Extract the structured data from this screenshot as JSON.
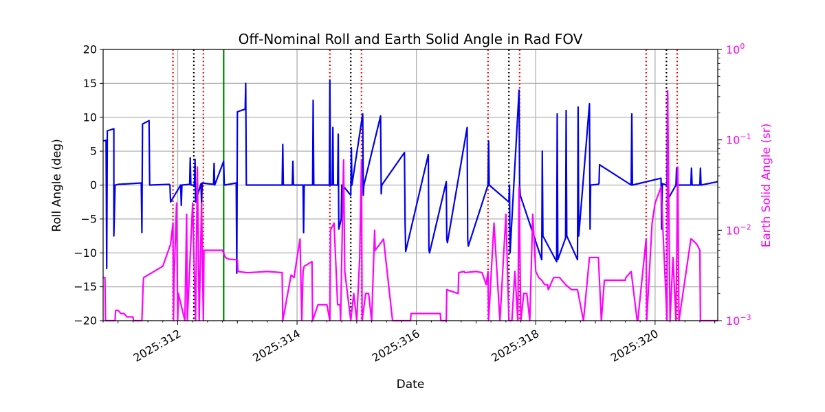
{
  "chart_data": {
    "type": "line",
    "title": "Off-Nominal Roll and Earth Solid Angle in Rad FOV",
    "xlabel": "Date",
    "ylabel": "Roll Angle (deg)",
    "ylabel_right": "Earth Solid Angle (sr)",
    "xlim": [
      310.75,
      321.05
    ],
    "ylim": [
      -20,
      20
    ],
    "ylim_right": [
      0.001,
      1
    ],
    "yscale_right": "log",
    "x_tick_labels": [
      {
        "x": 312,
        "label": "2025:312"
      },
      {
        "x": 314,
        "label": "2025:314"
      },
      {
        "x": 316,
        "label": "2025:316"
      },
      {
        "x": 318,
        "label": "2025:318"
      },
      {
        "x": 320,
        "label": "2025:320"
      }
    ],
    "y_ticks": [
      -20,
      -15,
      -10,
      -5,
      0,
      5,
      10,
      15,
      20
    ],
    "y_tick_labels": [
      "−20",
      "−15",
      "−10",
      "−5",
      "0",
      "5",
      "10",
      "15",
      "20"
    ],
    "y_right_tick_labels": [
      {
        "value": 0.001,
        "base": "10",
        "exp": "−3"
      },
      {
        "value": 0.01,
        "base": "10",
        "exp": "−2"
      },
      {
        "value": 0.1,
        "base": "10",
        "exp": "−1"
      },
      {
        "value": 1,
        "base": "10",
        "exp": "0"
      }
    ],
    "grid": true,
    "colors": {
      "roll": "#0000ee",
      "solid_angle": "#ff00ff",
      "red": "#ff0000",
      "black": "#000000",
      "green": "#008000",
      "right_axis": "#ff00ff"
    },
    "vertical_lines": [
      {
        "x": 311.92,
        "color": "red",
        "style": "dotted"
      },
      {
        "x": 312.27,
        "color": "black",
        "style": "dotted"
      },
      {
        "x": 312.43,
        "color": "red",
        "style": "dotted"
      },
      {
        "x": 312.77,
        "color": "green",
        "style": "solid"
      },
      {
        "x": 314.55,
        "color": "red",
        "style": "dotted"
      },
      {
        "x": 314.9,
        "color": "black",
        "style": "dotted"
      },
      {
        "x": 315.08,
        "color": "red",
        "style": "dotted"
      },
      {
        "x": 317.2,
        "color": "red",
        "style": "dotted"
      },
      {
        "x": 317.55,
        "color": "black",
        "style": "dotted"
      },
      {
        "x": 317.73,
        "color": "red",
        "style": "dotted"
      },
      {
        "x": 319.85,
        "color": "red",
        "style": "dotted"
      },
      {
        "x": 320.19,
        "color": "black",
        "style": "dotted"
      },
      {
        "x": 320.37,
        "color": "red",
        "style": "dotted"
      }
    ],
    "series": [
      {
        "name": "Roll Angle",
        "axis": "left",
        "color": "#0000ee",
        "x": [
          310.75,
          310.8,
          310.81,
          310.82,
          310.93,
          310.93,
          310.95,
          310.96,
          311.0,
          311.39,
          311.4,
          311.41,
          311.52,
          311.53,
          311.86,
          311.87,
          311.88,
          312.05,
          312.06,
          312.07,
          312.2,
          312.21,
          312.22,
          312.28,
          312.29,
          312.3,
          312.39,
          312.4,
          312.41,
          312.6,
          312.61,
          312.62,
          312.77,
          312.78,
          312.79,
          312.98,
          312.99,
          313.0,
          313.13,
          313.14,
          313.15,
          313.75,
          313.76,
          313.77,
          313.92,
          313.93,
          313.94,
          314.1,
          314.11,
          314.12,
          314.26,
          314.27,
          314.28,
          314.54,
          314.55,
          314.56,
          314.59,
          314.6,
          314.61,
          314.68,
          314.69,
          314.7,
          314.74,
          314.75,
          314.76,
          314.9,
          314.91,
          314.92,
          315.1,
          315.11,
          315.12,
          315.4,
          315.41,
          315.42,
          315.8,
          315.81,
          315.82,
          316.2,
          316.21,
          316.22,
          316.5,
          316.51,
          316.52,
          316.85,
          316.86,
          316.87,
          317.2,
          317.21,
          317.22,
          317.55,
          317.56,
          317.57,
          317.72,
          317.73,
          317.74,
          318.1,
          318.11,
          318.12,
          318.35,
          318.36,
          318.37,
          318.5,
          318.51,
          318.52,
          318.7,
          318.71,
          318.72,
          318.9,
          318.91,
          318.92,
          319.05,
          319.06,
          319.07,
          319.6,
          319.61,
          319.62,
          320.1,
          320.11,
          320.12,
          320.2,
          320.21,
          320.22,
          320.35,
          320.36,
          320.37,
          320.6,
          320.61,
          320.62,
          320.75,
          320.76,
          320.77,
          321.05
        ],
        "y": [
          6.5,
          6.6,
          -12.3,
          8.0,
          8.3,
          -7.5,
          0.0,
          0.0,
          0.1,
          0.3,
          -7.0,
          9.0,
          9.5,
          0.0,
          0.1,
          0.0,
          -2.5,
          0.0,
          -3.0,
          0.0,
          0.1,
          4.0,
          0.0,
          0.0,
          3.8,
          -2.5,
          0.2,
          -2.8,
          0.3,
          0.1,
          3.2,
          0.0,
          3.5,
          0.1,
          0.0,
          0.3,
          -13.0,
          10.8,
          11.2,
          15.0,
          0.0,
          0.0,
          6.0,
          0.0,
          0.0,
          3.5,
          0.0,
          0.0,
          -7.0,
          0.0,
          0.0,
          12.5,
          0.0,
          0.0,
          15.5,
          0.0,
          0.0,
          8.5,
          0.0,
          0.0,
          7.5,
          -6.5,
          -5.0,
          0.0,
          0.0,
          -1.5,
          5.5,
          0.0,
          10.5,
          -1.5,
          0.0,
          10.2,
          -1.3,
          0.0,
          4.8,
          -5.5,
          -9.8,
          4.5,
          -9.5,
          -10.0,
          0.5,
          -8.0,
          -8.5,
          8.5,
          -8.0,
          -9.0,
          0.0,
          6.5,
          0.0,
          -2.5,
          0.0,
          -10.0,
          14.0,
          0.0,
          -1.5,
          -11.0,
          5.0,
          -7.5,
          -11.3,
          10.5,
          -11.0,
          -7.8,
          11.0,
          -7.5,
          -11.0,
          11.5,
          -7.5,
          12.0,
          -6.5,
          0.0,
          0.1,
          0.3,
          3.0,
          0.0,
          10.5,
          0.0,
          1.0,
          -6.5,
          0.2,
          0.0,
          13.5,
          -2.0,
          0.0,
          2.5,
          0.0,
          0.0,
          2.5,
          0.0,
          0.0,
          2.5,
          0.0,
          0.5
        ]
      },
      {
        "name": "Earth Solid Angle",
        "axis": "right",
        "color": "#ff00ff",
        "x": [
          310.75,
          310.78,
          310.79,
          310.95,
          310.96,
          311.0,
          311.05,
          311.1,
          311.15,
          311.25,
          311.26,
          311.4,
          311.42,
          311.43,
          311.6,
          311.75,
          311.88,
          311.92,
          311.93,
          311.94,
          311.98,
          312.0,
          312.01,
          312.12,
          312.15,
          312.16,
          312.25,
          312.3,
          312.33,
          312.36,
          312.4,
          312.43,
          312.44,
          312.75,
          312.8,
          312.85,
          313.0,
          313.01,
          313.15,
          313.2,
          313.5,
          313.75,
          313.76,
          313.9,
          313.95,
          314.0,
          314.05,
          314.08,
          314.1,
          314.12,
          314.25,
          314.26,
          314.35,
          314.4,
          314.45,
          314.5,
          314.55,
          314.56,
          314.62,
          314.68,
          314.72,
          314.73,
          314.78,
          314.8,
          314.9,
          314.95,
          315.0,
          315.05,
          315.08,
          315.09,
          315.15,
          315.2,
          315.25,
          315.3,
          315.31,
          315.45,
          315.55,
          315.6,
          315.61,
          315.9,
          315.91,
          316.0,
          316.01,
          316.4,
          316.41,
          316.5,
          316.51,
          316.7,
          316.71,
          316.8,
          316.81,
          317.0,
          317.1,
          317.17,
          317.2,
          317.21,
          317.3,
          317.4,
          317.5,
          317.55,
          317.6,
          317.65,
          317.7,
          317.72,
          317.75,
          317.8,
          317.85,
          317.9,
          317.95,
          318.0,
          318.05,
          318.1,
          318.15,
          318.2,
          318.21,
          318.3,
          318.4,
          318.5,
          318.6,
          318.7,
          318.8,
          318.9,
          319.05,
          319.1,
          319.15,
          319.5,
          319.51,
          319.6,
          319.7,
          319.71,
          319.85,
          319.86,
          319.95,
          320.0,
          320.1,
          320.2,
          320.21,
          320.25,
          320.3,
          320.35,
          320.38,
          320.4,
          320.6,
          320.61,
          320.7,
          320.75,
          320.76,
          321.05
        ],
        "y": [
          0.003,
          0.003,
          0.001,
          0.001,
          0.0013,
          0.0013,
          0.0012,
          0.0012,
          0.0011,
          0.0011,
          0.001,
          0.001,
          0.0025,
          0.003,
          0.0035,
          0.004,
          0.007,
          0.012,
          0.001,
          0.003,
          0.02,
          0.001,
          0.002,
          0.001,
          0.015,
          0.001,
          0.02,
          0.001,
          0.05,
          0.001,
          0.02,
          0.001,
          0.006,
          0.006,
          0.005,
          0.0048,
          0.0047,
          0.0035,
          0.0034,
          0.0034,
          0.0035,
          0.0034,
          0.001,
          0.0032,
          0.003,
          0.005,
          0.008,
          0.001,
          0.0035,
          0.004,
          0.0045,
          0.001,
          0.0015,
          0.0015,
          0.0015,
          0.0015,
          0.001,
          0.01,
          0.012,
          0.0015,
          0.0015,
          0.001,
          0.06,
          0.0035,
          0.001,
          0.002,
          0.001,
          0.005,
          0.06,
          0.001,
          0.002,
          0.002,
          0.001,
          0.01,
          0.006,
          0.008,
          0.002,
          0.001,
          0.001,
          0.001,
          0.0012,
          0.0012,
          0.0012,
          0.0012,
          0.001,
          0.001,
          0.0022,
          0.002,
          0.0034,
          0.0035,
          0.0034,
          0.0035,
          0.0034,
          0.0025,
          0.0035,
          0.001,
          0.012,
          0.001,
          0.015,
          0.001,
          0.001,
          0.0035,
          0.001,
          0.03,
          0.001,
          0.002,
          0.002,
          0.001,
          0.015,
          0.0035,
          0.003,
          0.0028,
          0.0025,
          0.0025,
          0.0022,
          0.003,
          0.003,
          0.0025,
          0.0022,
          0.0022,
          0.001,
          0.005,
          0.005,
          0.001,
          0.0028,
          0.0028,
          0.003,
          0.0035,
          0.001,
          0.001,
          0.008,
          0.001,
          0.012,
          0.02,
          0.03,
          0.001,
          0.35,
          0.001,
          0.005,
          0.001,
          0.05,
          0.001,
          0.008,
          0.008,
          0.007,
          0.006,
          0.001,
          0.001
        ]
      }
    ]
  }
}
